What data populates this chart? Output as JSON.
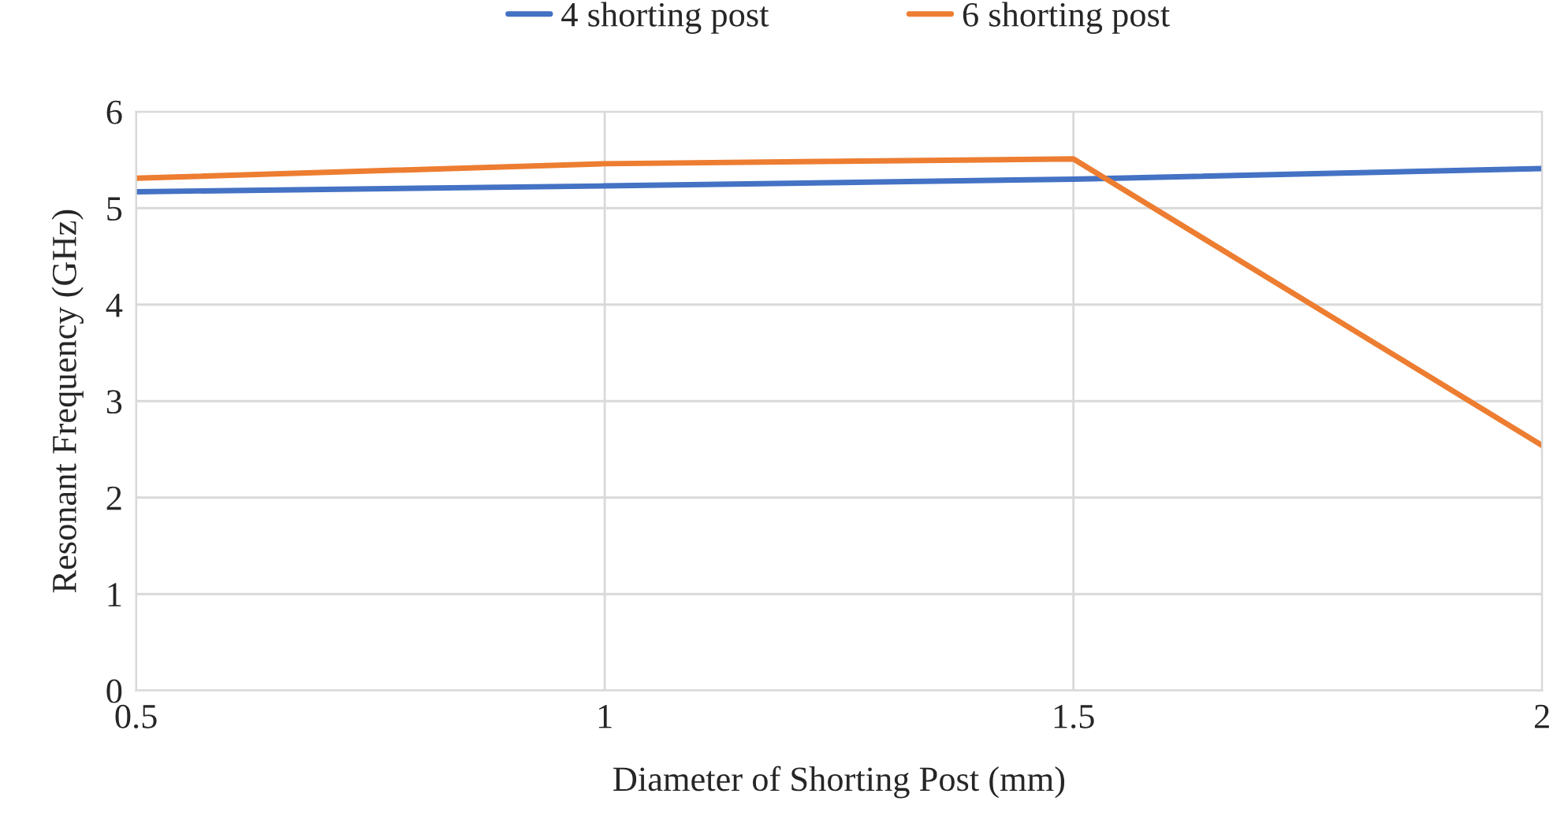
{
  "chart_data": {
    "type": "line",
    "xlabel": "Diameter of Shorting Post (mm)",
    "ylabel": "Resonant Frequency (GHz)",
    "x": [
      0.5,
      1,
      1.5,
      2
    ],
    "series": [
      {
        "name": "4 shorting post",
        "color": "#4472c4",
        "values": [
          5.17,
          5.23,
          5.3,
          5.41
        ]
      },
      {
        "name": "6 shorting post",
        "color": "#ed7d31",
        "values": [
          5.31,
          5.46,
          5.51,
          2.54
        ]
      }
    ],
    "xlim": [
      0.5,
      2
    ],
    "xticks": [
      0.5,
      1,
      1.5,
      2
    ],
    "ylim": [
      0,
      6
    ],
    "yticks": [
      0,
      1,
      2,
      3,
      4,
      5,
      6
    ],
    "grid": true,
    "legend": "top",
    "marker": "none",
    "line_style": "solid"
  }
}
